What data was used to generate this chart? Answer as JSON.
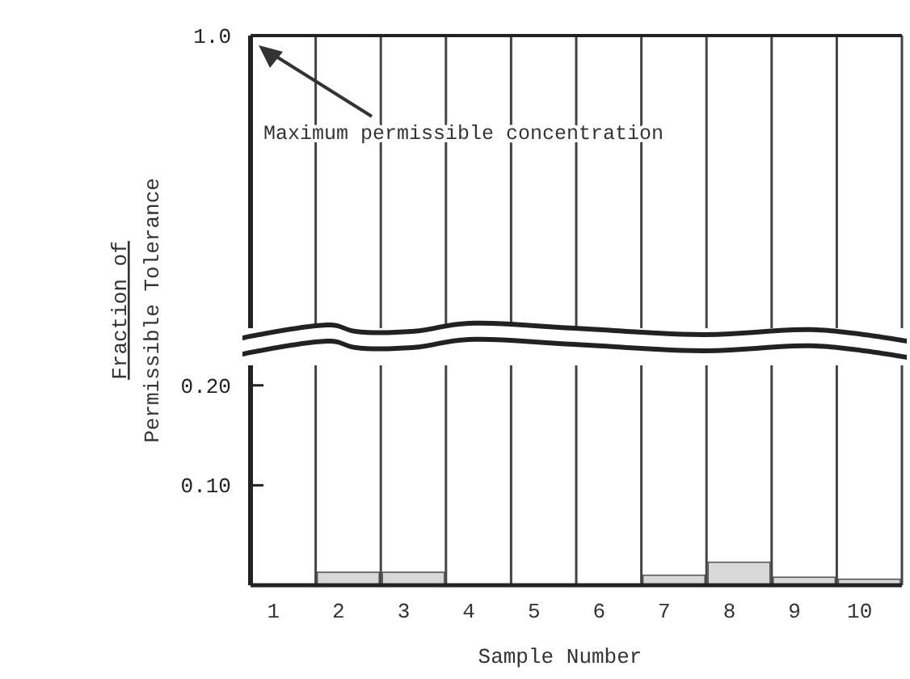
{
  "chart_data": [
    {
      "type": "other",
      "annotations": [
        "1.0",
        "Maximum permissible concentration"
      ]
    },
    {
      "type": "bar",
      "xlabel": "Sample Number",
      "ylabel": "Fraction of\nPermissible Tolerance",
      "categories": [
        "1",
        "2",
        "3",
        "4",
        "5",
        "6",
        "7",
        "8",
        "9",
        "10"
      ],
      "values": [
        0,
        0.013,
        0.013,
        0,
        0,
        0,
        0.01,
        0.023,
        0.008,
        0.006
      ],
      "color": "#d8d8d8",
      "ylim": [
        0,
        0.22
      ],
      "yticks": [
        {
          "value": 0.1,
          "label": "0.10"
        },
        {
          "value": 0.2,
          "label": "0.20"
        }
      ]
    }
  ]
}
